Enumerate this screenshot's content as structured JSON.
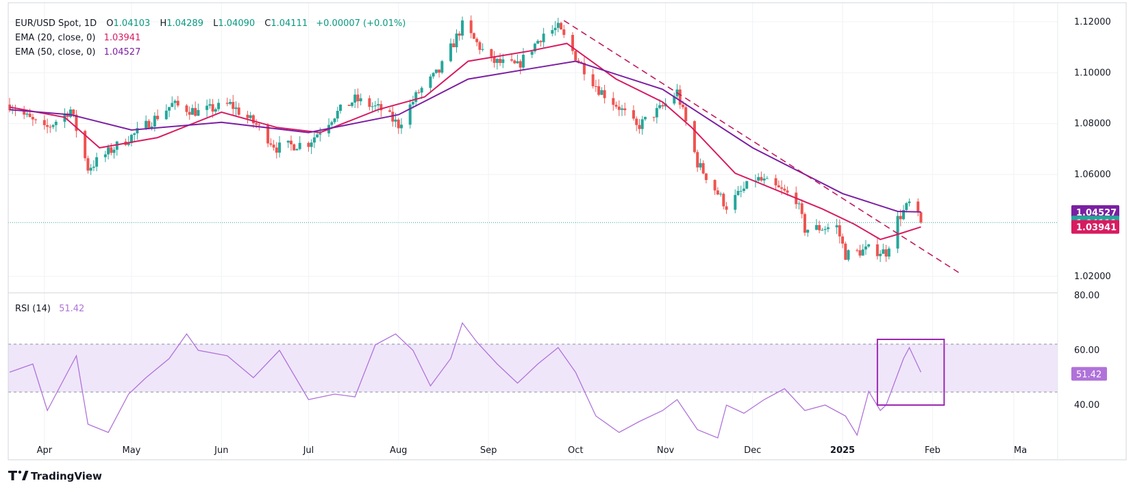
{
  "header": {
    "symbol": "EUR/USD Spot, 1D",
    "o_label": "O",
    "o_value": "1.04103",
    "h_label": "H",
    "h_value": "1.04289",
    "l_label": "L",
    "l_value": "1.04090",
    "c_label": "C",
    "c_value": "1.04111",
    "change": "+0.00007 (+0.01%)",
    "ema20_label": "EMA (20, close, 0)",
    "ema20_value": "1.03941",
    "ema50_label": "EMA (50, close, 0)",
    "ema50_value": "1.04527"
  },
  "rsi_panel": {
    "label": "RSI (14)",
    "value": "51.42"
  },
  "branding": {
    "logo_text": "TradingView"
  },
  "colors": {
    "up": "#26a69a",
    "down": "#ef5350",
    "ema20": "#d81b60",
    "ema50": "#7b1fa2",
    "rsi": "#b072d9",
    "rsi_band": "#efe6fa",
    "trendline": "#c2185b",
    "last_price": "#26a69a",
    "grid": "#f0f2f5",
    "axis_text": "#131722"
  },
  "chart_data": [
    {
      "type": "candlestick",
      "title": "EUR/USD Spot, 1D",
      "y_ticks": [
        "1.12000",
        "1.10000",
        "1.08000",
        "1.06000",
        "1.02000"
      ],
      "ylim": [
        1.0135,
        1.1275
      ],
      "x_ticks": [
        "Apr",
        "May",
        "Jun",
        "Jul",
        "Aug",
        "Sep",
        "Oct",
        "Nov",
        "Dec",
        "2025",
        "Feb",
        "Ma"
      ],
      "price_labels": {
        "ema50": "1.04527",
        "close": "1.04111",
        "ema20": "1.03941"
      },
      "close_series": {
        "dates": [
          "2024-03-20",
          "2024-04-01",
          "2024-04-10",
          "2024-04-16",
          "2024-04-25",
          "2024-05-03",
          "2024-05-15",
          "2024-05-24",
          "2024-06-04",
          "2024-06-13",
          "2024-06-20",
          "2024-07-01",
          "2024-07-10",
          "2024-07-17",
          "2024-07-26",
          "2024-08-01",
          "2024-08-08",
          "2024-08-15",
          "2024-08-23",
          "2024-09-02",
          "2024-09-11",
          "2024-09-20",
          "2024-09-25",
          "2024-10-01",
          "2024-10-09",
          "2024-10-16",
          "2024-10-22",
          "2024-10-31",
          "2024-11-05",
          "2024-11-12",
          "2024-11-22",
          "2024-12-02",
          "2024-12-06",
          "2024-12-16",
          "2024-12-19",
          "2024-12-30",
          "2025-01-02",
          "2025-01-10",
          "2025-01-16",
          "2025-01-20",
          "2025-01-24",
          "2025-01-28"
        ],
        "values": [
          1.0875,
          1.0775,
          1.0855,
          1.0625,
          1.0705,
          1.0765,
          1.0875,
          1.0845,
          1.0875,
          1.0795,
          1.0705,
          1.0725,
          1.0835,
          1.0895,
          1.0855,
          1.0795,
          1.0925,
          1.1005,
          1.1185,
          1.1045,
          1.1025,
          1.1155,
          1.1175,
          1.1065,
          1.0935,
          1.0865,
          1.0785,
          1.0865,
          1.0925,
          1.0645,
          1.0475,
          1.0585,
          1.0565,
          1.0505,
          1.0385,
          1.0395,
          1.0285,
          1.0305,
          1.0295,
          1.0425,
          1.0485,
          1.0411
        ]
      },
      "series": [
        {
          "name": "EMA (20, close, 0)",
          "dates": [
            "2024-03-20",
            "2024-04-08",
            "2024-04-20",
            "2024-05-10",
            "2024-06-01",
            "2024-06-20",
            "2024-07-05",
            "2024-07-25",
            "2024-08-10",
            "2024-08-25",
            "2024-09-15",
            "2024-09-28",
            "2024-10-15",
            "2024-10-31",
            "2024-11-10",
            "2024-11-25",
            "2024-12-10",
            "2024-12-25",
            "2025-01-05",
            "2025-01-14",
            "2025-01-20",
            "2025-01-28"
          ],
          "values": [
            1.0865,
            1.0825,
            1.0705,
            1.0745,
            1.0845,
            1.0785,
            1.0765,
            1.0855,
            1.0905,
            1.1045,
            1.1085,
            1.1115,
            1.0975,
            1.0885,
            1.0785,
            1.0605,
            1.0535,
            1.0465,
            1.0405,
            1.0345,
            1.0365,
            1.0394
          ]
        },
        {
          "name": "EMA (50, close, 0)",
          "dates": [
            "2024-03-20",
            "2024-04-10",
            "2024-05-01",
            "2024-06-01",
            "2024-07-01",
            "2024-08-01",
            "2024-08-25",
            "2024-09-15",
            "2024-10-01",
            "2024-10-31",
            "2024-12-01",
            "2025-01-01",
            "2025-01-20",
            "2025-01-28"
          ],
          "values": [
            1.0855,
            1.0835,
            1.0775,
            1.0805,
            1.0765,
            1.0835,
            1.0975,
            1.1015,
            1.1045,
            1.0935,
            1.0705,
            1.0525,
            1.0455,
            1.0453
          ]
        }
      ],
      "trendline": {
        "dates": [
          "2024-09-27",
          "2025-02-10"
        ],
        "values": [
          1.1205,
          1.0215
        ]
      }
    },
    {
      "type": "line",
      "title": "RSI (14)",
      "y_ticks": [
        "80.00",
        "60.00",
        "40.00"
      ],
      "ylim": [
        20,
        80
      ],
      "value_label": "51.42",
      "reference_lines": [
        60,
        40
      ],
      "series": [
        {
          "name": "RSI (14)",
          "dates": [
            "2024-03-20",
            "2024-03-28",
            "2024-04-02",
            "2024-04-09",
            "2024-04-12",
            "2024-04-16",
            "2024-04-23",
            "2024-04-30",
            "2024-05-06",
            "2024-05-14",
            "2024-05-20",
            "2024-05-24",
            "2024-06-03",
            "2024-06-12",
            "2024-06-21",
            "2024-07-01",
            "2024-07-10",
            "2024-07-17",
            "2024-07-24",
            "2024-07-31",
            "2024-08-06",
            "2024-08-12",
            "2024-08-19",
            "2024-08-23",
            "2024-08-28",
            "2024-09-04",
            "2024-09-11",
            "2024-09-18",
            "2024-09-25",
            "2024-10-01",
            "2024-10-08",
            "2024-10-16",
            "2024-10-23",
            "2024-10-31",
            "2024-11-05",
            "2024-11-12",
            "2024-11-19",
            "2024-11-22",
            "2024-11-28",
            "2024-12-05",
            "2024-12-12",
            "2024-12-19",
            "2024-12-26",
            "2025-01-02",
            "2025-01-06",
            "2025-01-10",
            "2025-01-14",
            "2025-01-16",
            "2025-01-22",
            "2025-01-24",
            "2025-01-28"
          ],
          "values": [
            52,
            55,
            38,
            52,
            58,
            33,
            30,
            44,
            50,
            57,
            66,
            60,
            58,
            50,
            60,
            42,
            44,
            43,
            62,
            66,
            60,
            47,
            57,
            70,
            63,
            55,
            48,
            55,
            61,
            52,
            36,
            30,
            34,
            38,
            42,
            31,
            28,
            40,
            37,
            42,
            46,
            38,
            40,
            36,
            29,
            45,
            38,
            40,
            57,
            61,
            52
          ]
        }
      ],
      "highlight_box": {
        "dates": [
          "2025-01-13",
          "2025-02-05"
        ],
        "values": [
          40,
          64
        ]
      }
    }
  ]
}
